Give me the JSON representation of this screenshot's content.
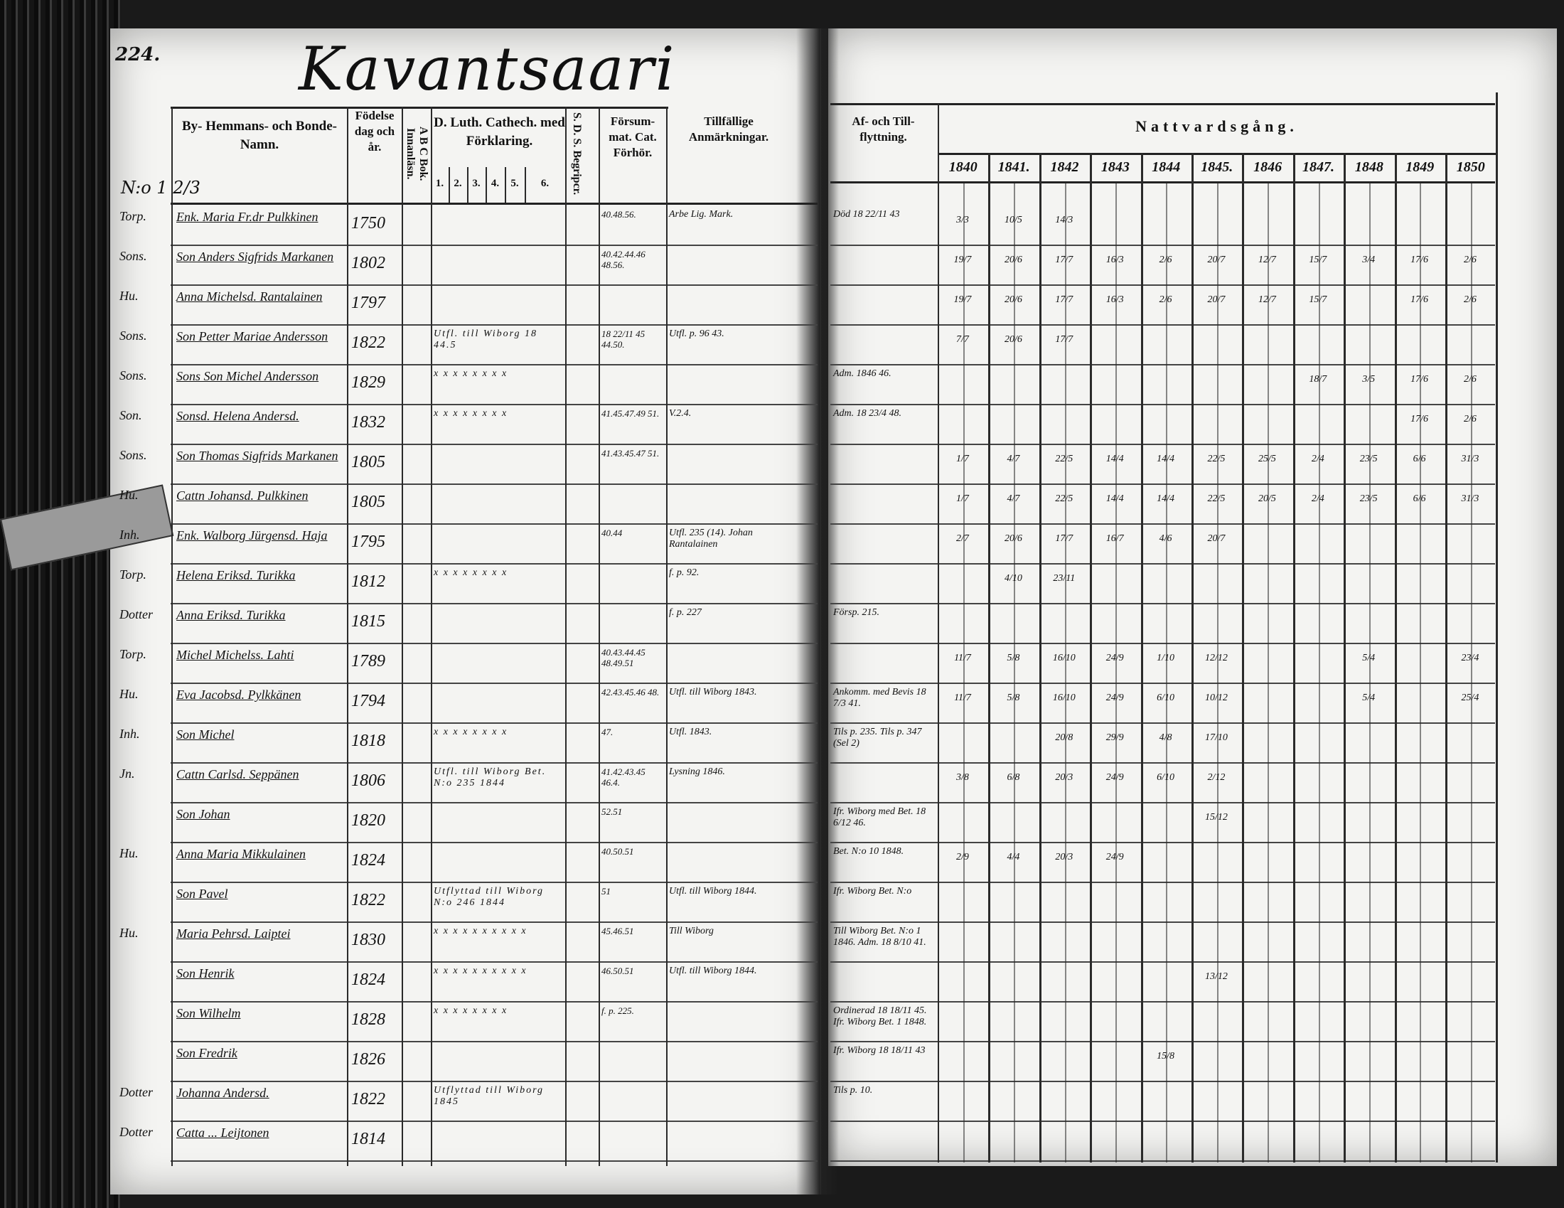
{
  "page_number": "224.",
  "village_title": "Kavantsaari",
  "register_no": "N:o 1 2/3",
  "left_headers": {
    "name": "By- Hemmans- och Bonde-Namn.",
    "birth": "Födelse dag och år.",
    "abc": "A B C Bok. Innanläsn.",
    "catechism": "D. Luth. Cathech. med Förklaring.",
    "catechism_cols": [
      "1.",
      "2.",
      "3.",
      "4.",
      "5.",
      "6."
    ],
    "sds": "S. D. S. Begripcr.",
    "missed": "Försum-mat. Cat. Förhör.",
    "occasional": "Tillfällige Anmärkningar."
  },
  "right_headers": {
    "moves": "Af- och Till-flyttning.",
    "communion": "Nattvardsgång.",
    "years": [
      "1840",
      "1841.",
      "1842",
      "1843",
      "1844",
      "1845.",
      "1846",
      "1847.",
      "1848",
      "1849",
      "1850"
    ]
  },
  "rows": [
    {
      "rel": "Torp.",
      "name": "Enk. Maria Fr.dr Pulkkinen",
      "year": "1750",
      "cat": "",
      "missed": "40.48.56.",
      "note": "Arbe Lig. Mark.",
      "moves": "Död 18 22/11 43",
      "nv": [
        "3/3",
        "10/5",
        "14/3",
        "",
        "",
        "",
        "",
        "",
        "",
        "",
        ""
      ]
    },
    {
      "rel": "Sons.",
      "name": "Son Anders Sigfrids Markanen",
      "year": "1802",
      "cat": "",
      "missed": "40.42.44.46 48.56.",
      "note": "",
      "moves": "",
      "nv": [
        "19/7",
        "20/6",
        "17/7",
        "16/3",
        "2/6",
        "20/7",
        "12/7",
        "15/7",
        "3/4",
        "17/6",
        "2/6"
      ]
    },
    {
      "rel": "Hu.",
      "name": "Anna Michelsd. Rantalainen",
      "year": "1797",
      "cat": "",
      "missed": "",
      "note": "",
      "moves": "",
      "nv": [
        "19/7",
        "20/6",
        "17/7",
        "16/3",
        "2/6",
        "20/7",
        "12/7",
        "15/7",
        "",
        "17/6",
        "2/6"
      ]
    },
    {
      "rel": "Sons.",
      "name": "Son Petter Mariae Andersson",
      "year": "1822",
      "cat": "Utfl. till Wiborg 18 44.5",
      "missed": "18 22/11 45 44.50.",
      "note": "Utfl. p. 96 43.",
      "moves": "",
      "nv": [
        "7/7",
        "20/6",
        "17/7",
        "",
        "",
        "",
        "",
        "",
        "",
        "",
        ""
      ]
    },
    {
      "rel": "Sons.",
      "name": "Sons Son Michel Andersson",
      "year": "1829",
      "cat": "x x x x x x x x",
      "missed": "",
      "note": "",
      "moves": "Adm. 1846 46.",
      "nv": [
        "",
        "",
        "",
        "",
        "",
        "",
        "",
        "18/7",
        "3/5",
        "17/6",
        "2/6"
      ]
    },
    {
      "rel": "Son.",
      "name": "Sonsd. Helena Andersd.",
      "year": "1832",
      "cat": "x x x x x x x x",
      "missed": "41.45.47.49 51.",
      "note": "V.2.4.",
      "moves": "Adm. 18 23/4 48.",
      "nv": [
        "",
        "",
        "",
        "",
        "",
        "",
        "",
        "",
        "",
        "17/6",
        "2/6"
      ]
    },
    {
      "rel": "Sons.",
      "name": "Son Thomas Sigfrids Markanen",
      "year": "1805",
      "cat": "",
      "missed": "41.43.45.47 51.",
      "note": "",
      "moves": "",
      "nv": [
        "1/7",
        "4/7",
        "22/5",
        "14/4",
        "14/4",
        "22/5",
        "25/5",
        "2/4",
        "23/5",
        "6/6",
        "31/3"
      ]
    },
    {
      "rel": "Hu.",
      "name": "Cattn Johansd. Pulkkinen",
      "year": "1805",
      "cat": "",
      "missed": "",
      "note": "",
      "moves": "",
      "nv": [
        "1/7",
        "4/7",
        "22/5",
        "14/4",
        "14/4",
        "22/5",
        "20/5",
        "2/4",
        "23/5",
        "6/6",
        "31/3"
      ]
    },
    {
      "rel": "Inh.",
      "name": "Enk. Walborg Jürgensd. Haja",
      "year": "1795",
      "cat": "",
      "missed": "40.44",
      "note": "Utfl. 235 (14). Johan Rantalainen",
      "moves": "",
      "nv": [
        "2/7",
        "20/6",
        "17/7",
        "16/7",
        "4/6",
        "20/7",
        "",
        "",
        "",
        "",
        ""
      ]
    },
    {
      "rel": "Torp.",
      "name": "Helena Eriksd. Turikka",
      "year": "1812",
      "cat": "x x x x x x x x",
      "missed": "",
      "note": "f. p. 92.",
      "moves": "",
      "nv": [
        "",
        "4/10",
        "23/11",
        "",
        "",
        "",
        "",
        "",
        "",
        "",
        ""
      ]
    },
    {
      "rel": "Dotter",
      "name": "Anna Eriksd. Turikka",
      "year": "1815",
      "cat": "",
      "missed": "",
      "note": "f. p. 227",
      "moves": "Försp. 215.",
      "nv": [
        "",
        "",
        "",
        "",
        "",
        "",
        "",
        "",
        "",
        "",
        ""
      ]
    },
    {
      "rel": "Torp.",
      "name": "Michel Michelss. Lahti",
      "year": "1789",
      "cat": "",
      "missed": "40.43.44.45 48.49.51",
      "note": "",
      "moves": "",
      "nv": [
        "11/7",
        "5/8",
        "16/10",
        "24/9",
        "1/10",
        "12/12",
        "",
        "",
        "5/4",
        "",
        "23/4"
      ]
    },
    {
      "rel": "Hu.",
      "name": "Eva Jacobsd. Pylkkänen",
      "year": "1794",
      "cat": "",
      "missed": "42.43.45.46 48.",
      "note": "Utfl. till Wiborg 1843.",
      "moves": "Ankomm. med Bevis 18 7/3 41.",
      "nv": [
        "11/7",
        "5/8",
        "16/10",
        "24/9",
        "6/10",
        "10/12",
        "",
        "",
        "5/4",
        "",
        "25/4"
      ]
    },
    {
      "rel": "Inh.",
      "name": "Son Michel",
      "year": "1818",
      "cat": "x x x x x x x x",
      "missed": "47.",
      "note": "Utfl. 1843.",
      "moves": "Tils p. 235. Tils p. 347 (Sel 2)",
      "nv": [
        "",
        "",
        "20/8",
        "29/9",
        "4/8",
        "17/10",
        "",
        "",
        "",
        "",
        ""
      ]
    },
    {
      "rel": "Jn.",
      "name": "Cattn Carlsd. Seppänen",
      "year": "1806",
      "cat": "Utfl. till Wiborg Bet. N:o 235 1844",
      "missed": "41.42.43.45 46.4.",
      "note": "Lysning 1846.",
      "moves": "",
      "nv": [
        "3/8",
        "6/8",
        "20/3",
        "24/9",
        "6/10",
        "2/12",
        "",
        "",
        "",
        "",
        ""
      ]
    },
    {
      "rel": "",
      "name": "Son Johan",
      "year": "1820",
      "cat": "",
      "missed": "52.51",
      "note": "",
      "moves": "Ifr. Wiborg med Bet. 18 6/12 46.",
      "nv": [
        "",
        "",
        "",
        "",
        "",
        "15/12",
        "",
        "",
        "",
        "",
        ""
      ]
    },
    {
      "rel": "Hu.",
      "name": "Anna Maria Mikkulainen",
      "year": "1824",
      "cat": "",
      "missed": "40.50.51",
      "note": "",
      "moves": "Bet. N:o 10 1848.",
      "nv": [
        "2/9",
        "4/4",
        "20/3",
        "24/9",
        "",
        "",
        "",
        "",
        "",
        "",
        ""
      ]
    },
    {
      "rel": "",
      "name": "Son Pavel",
      "year": "1822",
      "cat": "Utflyttad till Wiborg N:o 246 1844",
      "missed": "51",
      "note": "Utfl. till Wiborg 1844.",
      "moves": "Ifr. Wiborg Bet. N:o",
      "nv": [
        "",
        "",
        "",
        "",
        "",
        "",
        "",
        "",
        "",
        "",
        ""
      ]
    },
    {
      "rel": "Hu.",
      "name": "Maria Pehrsd. Laiptei",
      "year": "1830",
      "cat": "x x x x x x x x x x",
      "missed": "45.46.51",
      "note": "Till Wiborg",
      "moves": "Till Wiborg Bet. N:o 1 1846. Adm. 18 8/10 41.",
      "nv": [
        "",
        "",
        "",
        "",
        "",
        "",
        "",
        "",
        "",
        "",
        ""
      ]
    },
    {
      "rel": "",
      "name": "Son Henrik",
      "year": "1824",
      "cat": "x x x x x x x x x x",
      "missed": "46.50.51",
      "note": "Utfl. till Wiborg 1844.",
      "moves": "",
      "nv": [
        "",
        "",
        "",
        "",
        "",
        "13/12",
        "",
        "",
        "",
        "",
        ""
      ]
    },
    {
      "rel": "",
      "name": "Son Wilhelm",
      "year": "1828",
      "cat": "x x x x x x x x",
      "missed": "f. p. 225.",
      "note": "",
      "moves": "Ordinerad 18 18/11 45. Ifr. Wiborg Bet. 1 1848.",
      "nv": [
        "",
        "",
        "",
        "",
        "",
        "",
        "",
        "",
        "",
        "",
        ""
      ]
    },
    {
      "rel": "",
      "name": "Son Fredrik",
      "year": "1826",
      "cat": "",
      "missed": "",
      "note": "",
      "moves": "Ifr. Wiborg 18 18/11 43",
      "nv": [
        "",
        "",
        "",
        "",
        "15/8",
        "",
        "",
        "",
        "",
        "",
        ""
      ]
    },
    {
      "rel": "Dotter",
      "name": "Johanna Andersd.",
      "year": "1822",
      "cat": "Utflyttad till Wiborg 1845",
      "missed": "",
      "note": "",
      "moves": "Tils p. 10.",
      "nv": [
        "",
        "",
        "",
        "",
        "",
        "",
        "",
        "",
        "",
        "",
        ""
      ]
    },
    {
      "rel": "Dotter",
      "name": "Catta ... Leijtonen",
      "year": "1814",
      "cat": "",
      "missed": "",
      "note": "",
      "moves": "",
      "nv": [
        "",
        "",
        "",
        "",
        "",
        "",
        "",
        "",
        "",
        "",
        ""
      ]
    }
  ]
}
